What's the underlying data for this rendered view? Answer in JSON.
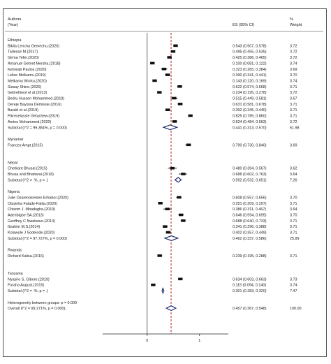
{
  "chart_data": {
    "type": "forest",
    "header": {
      "study": "Authors.",
      "study2": "(Year)",
      "es": "ES (95% CI)",
      "w1": "%",
      "w2": "Weight"
    },
    "x_axis": {
      "ticks": [
        "0",
        "1"
      ],
      "tick_values": [
        0,
        1
      ],
      "xlim": [
        -0.85,
        1.55
      ],
      "ref_line": 0.457
    },
    "rows": [
      {
        "kind": "group",
        "label": "Ethiopia"
      },
      {
        "kind": "study",
        "label": "Biklia Lencha Gemechu.(2020)",
        "es": 0.543,
        "lo": 0.507,
        "hi": 0.578,
        "ci": "0.543 (0.507, 0.578)",
        "weight": "3.72"
      },
      {
        "kind": "study",
        "label": "Tadesse M.(2017)",
        "es": 0.495,
        "lo": 0.455,
        "hi": 0.535,
        "ci": "0.495 (0.455, 0.535)",
        "weight": "3.72"
      },
      {
        "kind": "study",
        "label": "Girma Tefer.(2020)",
        "es": 0.425,
        "lo": 0.386,
        "hi": 0.465,
        "ci": "0.425 (0.386, 0.465)",
        "weight": "3.72"
      },
      {
        "kind": "study",
        "label": "Amanuel Getnet Mersha.(2018)",
        "es": 0.1,
        "lo": 0.081,
        "hi": 0.122,
        "ci": "0.100 (0.081, 0.122)",
        "weight": "3.74"
      },
      {
        "kind": "study",
        "label": "Kebreab Paulos.(2020)",
        "es": 0.323,
        "lo": 0.265,
        "hi": 0.384,
        "ci": "0.323 (0.265, 0.384)",
        "weight": "3.69"
      },
      {
        "kind": "study",
        "label": "Lelise Melkamu.(2019)",
        "es": 0.39,
        "lo": 0.341,
        "hi": 0.441,
        "ci": "0.390 (0.341, 0.441)",
        "weight": "3.70"
      },
      {
        "kind": "study",
        "label": "Melkamu Worku.(2020)",
        "es": 0.143,
        "lo": 0.12,
        "hi": 0.169,
        "ci": "0.143 (0.120, 0.169)",
        "weight": "3.74"
      },
      {
        "kind": "study",
        "label": "Sissay Shine.(2020)",
        "es": 0.622,
        "lo": 0.574,
        "hi": 0.668,
        "ci": "0.622 (0.574, 0.668)",
        "weight": "3.71"
      },
      {
        "kind": "study",
        "label": "Gebrehiwot et al.(2013)",
        "es": 0.234,
        "lo": 0.195,
        "hi": 0.278,
        "ci": "0.234 (0.195, 0.278)",
        "weight": "3.72"
      },
      {
        "kind": "study",
        "label": "Bedru Hussen Mohammed.(2019)",
        "es": 0.515,
        "lo": 0.449,
        "hi": 0.581,
        "ci": "0.515 (0.449, 0.581)",
        "weight": "3.67"
      },
      {
        "kind": "study",
        "label": "Dereje Bayissa Demissie.(2016)",
        "es": 0.631,
        "lo": 0.581,
        "hi": 0.678,
        "ci": "0.631 (0.581, 0.678)",
        "weight": "3.71"
      },
      {
        "kind": "study",
        "label": "Baraki et al.(2019)",
        "es": 0.392,
        "lo": 0.345,
        "hi": 0.44,
        "ci": "0.392 (0.345, 0.440)",
        "weight": "3.71"
      },
      {
        "kind": "study",
        "label": "Fikreselassie Getachew.(2019)",
        "es": 0.825,
        "lo": 0.785,
        "hi": 0.86,
        "ci": "0.825 (0.785, 0.860)",
        "weight": "3.71"
      },
      {
        "kind": "study",
        "label": "Aminu Mohammed.(2020)",
        "es": 0.524,
        "lo": 0.484,
        "hi": 0.563,
        "ci": "0.524 (0.484, 0.563)",
        "weight": "3.72"
      },
      {
        "kind": "subtotal",
        "label": "Subtotal  (I^2 = 99.384%, p = 0.000)",
        "es": 0.441,
        "lo": 0.313,
        "hi": 0.57,
        "ci": "0.441 (0.313, 0.570)",
        "weight": "51.98"
      },
      {
        "kind": "blank"
      },
      {
        "kind": "group",
        "label": "Mynamar"
      },
      {
        "kind": "study",
        "label": "Frances Ampt.(2015)",
        "es": 0.79,
        "lo": 0.73,
        "hi": 0.84,
        "ci": "0.790 (0.730, 0.840)",
        "weight": "3.69"
      },
      {
        "kind": "blank"
      },
      {
        "kind": "blank"
      },
      {
        "kind": "group",
        "label": "Nepal"
      },
      {
        "kind": "study",
        "label": "Chetkant Bhusal.(2015)",
        "es": 0.48,
        "lo": 0.394,
        "hi": 0.567,
        "ci": "0.480 (0.394, 0.567)",
        "weight": "3.62"
      },
      {
        "kind": "study",
        "label": "Bhusa and Bhattarai.(2018)",
        "es": 0.688,
        "lo": 0.602,
        "hi": 0.763,
        "ci": "0.688 (0.602, 0.763)",
        "weight": "3.64"
      },
      {
        "kind": "subtotal",
        "label": "Subtotal  (I^2 = .%, p = .)",
        "es": 0.592,
        "lo": 0.532,
        "hi": 0.651,
        "ci": "0.592 (0.532, 0.651)",
        "weight": "7.26"
      },
      {
        "kind": "blank"
      },
      {
        "kind": "group",
        "label": "Nigeria"
      },
      {
        "kind": "study",
        "label": "Julie Osarenokemen Erhabor.(2020)",
        "es": 0.608,
        "lo": 0.557,
        "hi": 0.656,
        "ci": "0.608 (0.557, 0.656)",
        "weight": "3.70"
      },
      {
        "kind": "study",
        "label": "Olayinka Falade-Fatila.(2020)",
        "es": 0.251,
        "lo": 0.209,
        "hi": 0.297,
        "ci": "0.251 (0.209, 0.297)",
        "weight": "3.71"
      },
      {
        "kind": "study",
        "label": "Chisom J. Mbadugha.(2019)",
        "es": 0.386,
        "lo": 0.311,
        "hi": 0.467,
        "ci": "0.386 (0.311, 0.467)",
        "weight": "3.64"
      },
      {
        "kind": "study",
        "label": "Aderibigbe SA.(2013)",
        "es": 0.646,
        "lo": 0.594,
        "hi": 0.695,
        "ci": "0.646 (0.594, 0.695)",
        "weight": "3.70"
      },
      {
        "kind": "study",
        "label": "Geoffrey C Nwakwuo.(2013)",
        "es": 0.688,
        "lo": 0.64,
        "hi": 0.733,
        "ci": "0.688 (0.640, 0.733)",
        "weight": "3.71"
      },
      {
        "kind": "study",
        "label": "Ibrahim M.S.(2014)",
        "es": 0.341,
        "lo": 0.296,
        "hi": 0.388,
        "ci": "0.341 (0.296, 0.388)",
        "weight": "3.71"
      },
      {
        "kind": "study",
        "label": "Kolawole J Sodeinde.(2020)",
        "es": 0.402,
        "lo": 0.357,
        "hi": 0.449,
        "ci": "0.402 (0.357, 0.449)",
        "weight": "3.71"
      },
      {
        "kind": "subtotal",
        "label": "Subtotal  (I^2 = 97.727%, p = 0.000)",
        "es": 0.462,
        "lo": 0.337,
        "hi": 0.586,
        "ci": "0.462 (0.337, 0.586)",
        "weight": "25.89"
      },
      {
        "kind": "blank"
      },
      {
        "kind": "group",
        "label": "Rwanda"
      },
      {
        "kind": "study",
        "label": "Richard Kalisa.(2016)",
        "es": 0.239,
        "lo": 0.195,
        "hi": 0.288,
        "ci": "0.239 (0.195, 0.288)",
        "weight": "3.71"
      },
      {
        "kind": "blank"
      },
      {
        "kind": "blank"
      },
      {
        "kind": "group",
        "label": "Tanzania"
      },
      {
        "kind": "study",
        "label": "Nyasiro S. Gibore.(2019)",
        "es": 0.634,
        "lo": 0.603,
        "hi": 0.663,
        "ci": "0.634 (0.603, 0.663)",
        "weight": "3.73"
      },
      {
        "kind": "study",
        "label": "Furaha August.(2015)",
        "es": 0.115,
        "lo": 0.094,
        "hi": 0.14,
        "ci": "0.115 (0.094, 0.140)",
        "weight": "3.74"
      },
      {
        "kind": "subtotal",
        "label": "Subtotal  (I^2 = .%, p = .)",
        "es": 0.301,
        "lo": 0.283,
        "hi": 0.32,
        "ci": "0.301 (0.283, 0.320)",
        "weight": "7.47"
      },
      {
        "kind": "blank"
      },
      {
        "kind": "text",
        "label": "Heterogeneity between groups: p = 0.000"
      },
      {
        "kind": "overall",
        "label": "Overall  (I^2 = 99.271%, p = 0.000);",
        "es": 0.457,
        "lo": 0.367,
        "hi": 0.548,
        "ci": "0.457 (0.367, 0.548)",
        "weight": "100.00"
      }
    ],
    "colors": {
      "diamond": "#1f2a6b",
      "ref_line": "#b22222",
      "marker": "#111111"
    }
  }
}
